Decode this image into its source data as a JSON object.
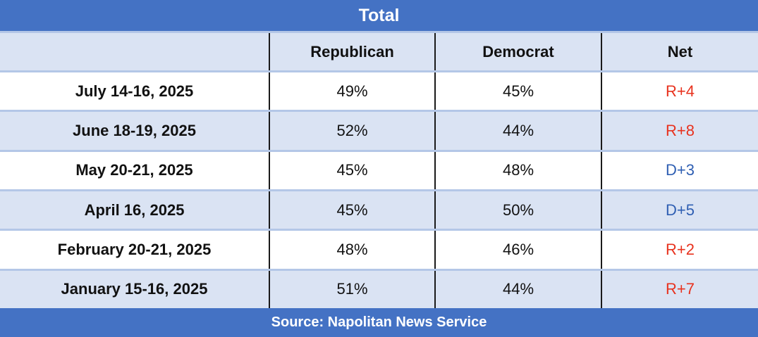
{
  "chart_data": {
    "type": "table",
    "title": "Total",
    "columns": [
      "",
      "Republican",
      "Democrat",
      "Net"
    ],
    "rows": [
      {
        "date": "July 14-16, 2025",
        "republican": "49%",
        "democrat": "45%",
        "net": "R+4",
        "net_party": "R"
      },
      {
        "date": "June 18-19, 2025",
        "republican": "52%",
        "democrat": "44%",
        "net": "R+8",
        "net_party": "R"
      },
      {
        "date": "May 20-21, 2025",
        "republican": "45%",
        "democrat": "48%",
        "net": "D+3",
        "net_party": "D"
      },
      {
        "date": "April 16, 2025",
        "republican": "45%",
        "democrat": "50%",
        "net": "D+5",
        "net_party": "D"
      },
      {
        "date": "February 20-21, 2025",
        "republican": "48%",
        "democrat": "46%",
        "net": "R+2",
        "net_party": "R"
      },
      {
        "date": "January 15-16, 2025",
        "republican": "51%",
        "democrat": "44%",
        "net": "R+7",
        "net_party": "R"
      }
    ],
    "source": "Source: Napolitan News Service"
  },
  "colors": {
    "banner": "#4472c4",
    "row_alt": "#dae3f3",
    "republican_net": "#e8321e",
    "democrat_net": "#2f5fb3"
  }
}
